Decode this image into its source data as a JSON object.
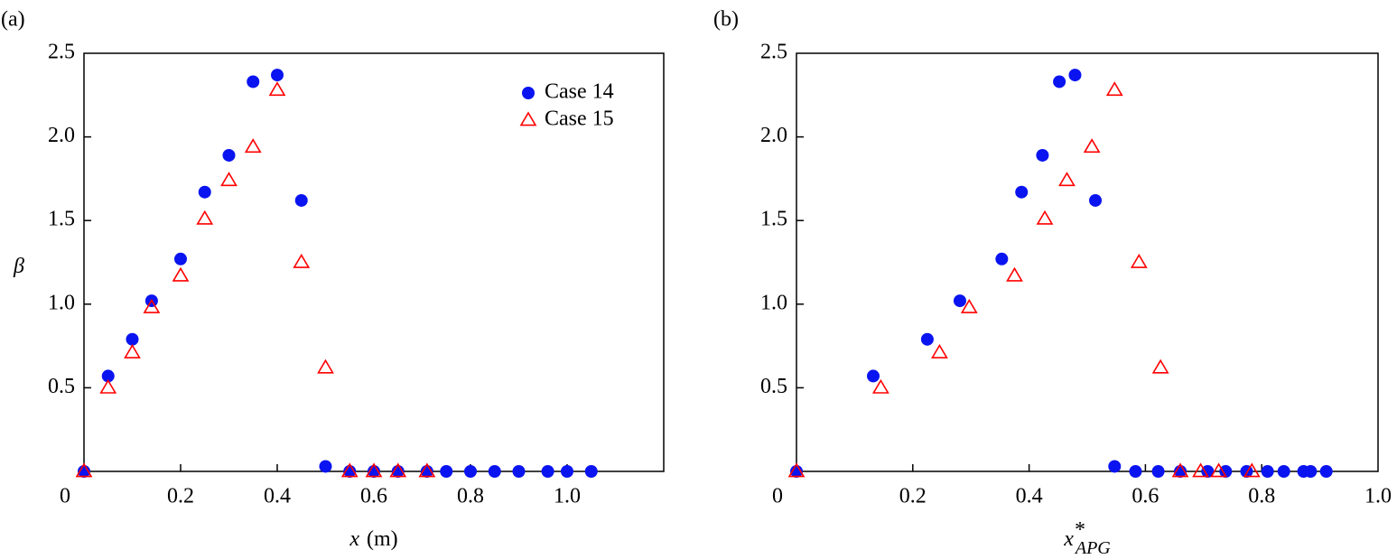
{
  "chart_data": [
    {
      "type": "scatter",
      "panel_label": "(a)",
      "ylabel": "β",
      "xlabel": {
        "symbol": "x",
        "unit": "(m)"
      },
      "xlim": [
        0,
        1.2
      ],
      "ylim": [
        0,
        2.5
      ],
      "xticks": [
        0,
        0.2,
        0.4,
        0.6,
        0.8,
        {
          "value": 1.0,
          "label": "1.0"
        }
      ],
      "yticks": [
        0.5,
        {
          "value": 1.0,
          "label": "1.0"
        },
        1.5,
        {
          "value": 2.0,
          "label": "2.0"
        },
        2.5
      ],
      "legend": "upper right",
      "series": [
        {
          "name": "Case 14",
          "color": "#0a14f0",
          "marker": "circle",
          "x": [
            0,
            0.05,
            0.1,
            0.14,
            0.2,
            0.25,
            0.3,
            0.35,
            0.4,
            0.45,
            0.5,
            0.55,
            0.6,
            0.65,
            0.71,
            0.75,
            0.8,
            0.85,
            0.9,
            0.96,
            1.0,
            1.05
          ],
          "values": [
            0,
            0.57,
            0.79,
            1.02,
            1.27,
            1.67,
            1.89,
            2.33,
            2.37,
            1.62,
            0.03,
            0,
            0,
            0,
            0,
            0,
            0,
            0,
            0,
            0,
            0,
            0
          ]
        },
        {
          "name": "Case 15",
          "color": "#ff0000",
          "marker": "triangle",
          "x": [
            0,
            0.05,
            0.1,
            0.14,
            0.2,
            0.25,
            0.3,
            0.35,
            0.4,
            0.45,
            0.5,
            0.55,
            0.6,
            0.65,
            0.71
          ],
          "values": [
            0,
            0.5,
            0.71,
            0.98,
            1.17,
            1.51,
            1.74,
            1.94,
            2.28,
            1.25,
            0.62,
            0,
            0,
            0,
            0
          ]
        }
      ]
    },
    {
      "type": "scatter",
      "panel_label": "(b)",
      "xlabel": {
        "symbol": "x",
        "sup": "*",
        "sub": "APG"
      },
      "xlim": [
        0,
        1.0
      ],
      "ylim": [
        0,
        2.5
      ],
      "xticks": [
        0,
        0.2,
        0.4,
        0.6,
        0.8,
        {
          "value": 1.0,
          "label": "1.0"
        }
      ],
      "yticks": [
        0.5,
        {
          "value": 1.0,
          "label": "1.0"
        },
        1.5,
        {
          "value": 2.0,
          "label": "2.0"
        },
        2.5
      ],
      "series": [
        {
          "color": "#0a14f0",
          "marker": "circle",
          "x": [
            0,
            0.132,
            0.225,
            0.281,
            0.353,
            0.387,
            0.423,
            0.452,
            0.479,
            0.514,
            0.547,
            0.583,
            0.622,
            0.66,
            0.707,
            0.738,
            0.774,
            0.81,
            0.838,
            0.872,
            0.884,
            0.911
          ],
          "values": [
            0,
            0.57,
            0.79,
            1.02,
            1.27,
            1.67,
            1.89,
            2.33,
            2.37,
            1.62,
            0.03,
            0,
            0,
            0,
            0,
            0,
            0,
            0,
            0,
            0,
            0,
            0
          ]
        },
        {
          "color": "#ff0000",
          "marker": "triangle",
          "x": [
            0,
            0.145,
            0.246,
            0.297,
            0.375,
            0.427,
            0.465,
            0.508,
            0.547,
            0.589,
            0.626,
            0.66,
            0.695,
            0.726,
            0.783
          ],
          "values": [
            0,
            0.5,
            0.71,
            0.98,
            1.17,
            1.51,
            1.74,
            1.94,
            2.28,
            1.25,
            0.62,
            0,
            0,
            0,
            0
          ]
        }
      ]
    }
  ]
}
